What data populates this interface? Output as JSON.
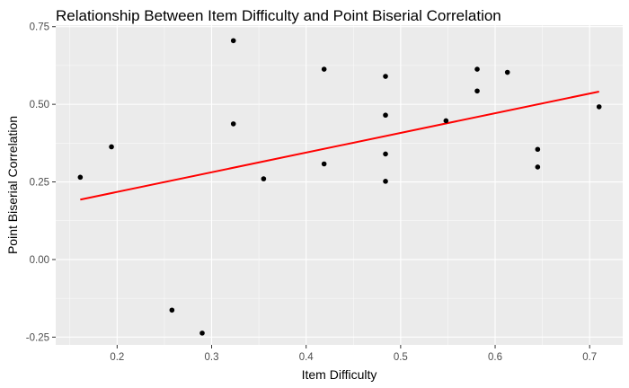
{
  "chart_data": {
    "type": "scatter",
    "title": "Relationship Between Item Difficulty and Point Biserial Correlation",
    "xlabel": "Item Difficulty",
    "ylabel": "Point Biserial Correlation",
    "xlim": [
      0.135,
      0.735
    ],
    "ylim": [
      -0.275,
      0.755
    ],
    "x_ticks": [
      0.2,
      0.3,
      0.4,
      0.5,
      0.6,
      0.7
    ],
    "x_tick_labels": [
      "0.2",
      "0.3",
      "0.4",
      "0.5",
      "0.6",
      "0.7"
    ],
    "y_ticks": [
      -0.25,
      0.0,
      0.25,
      0.5,
      0.75
    ],
    "y_tick_labels": [
      "-0.25",
      "0.00",
      "0.25",
      "0.50",
      "0.75"
    ],
    "grid": true,
    "background_color": "#ebebeb",
    "point_color": "#000000",
    "trend_color": "#ff0000",
    "points": [
      {
        "x": 0.161,
        "y": 0.265
      },
      {
        "x": 0.194,
        "y": 0.363
      },
      {
        "x": 0.258,
        "y": -0.163
      },
      {
        "x": 0.29,
        "y": -0.237
      },
      {
        "x": 0.323,
        "y": 0.705
      },
      {
        "x": 0.323,
        "y": 0.437
      },
      {
        "x": 0.355,
        "y": 0.26
      },
      {
        "x": 0.419,
        "y": 0.613
      },
      {
        "x": 0.419,
        "y": 0.308
      },
      {
        "x": 0.484,
        "y": 0.59
      },
      {
        "x": 0.484,
        "y": 0.465
      },
      {
        "x": 0.484,
        "y": 0.34
      },
      {
        "x": 0.484,
        "y": 0.252
      },
      {
        "x": 0.548,
        "y": 0.447
      },
      {
        "x": 0.581,
        "y": 0.613
      },
      {
        "x": 0.581,
        "y": 0.543
      },
      {
        "x": 0.613,
        "y": 0.603
      },
      {
        "x": 0.645,
        "y": 0.355
      },
      {
        "x": 0.645,
        "y": 0.298
      },
      {
        "x": 0.71,
        "y": 0.492
      }
    ],
    "trend_line": {
      "x": [
        0.161,
        0.71
      ],
      "y": [
        0.193,
        0.541
      ]
    }
  }
}
